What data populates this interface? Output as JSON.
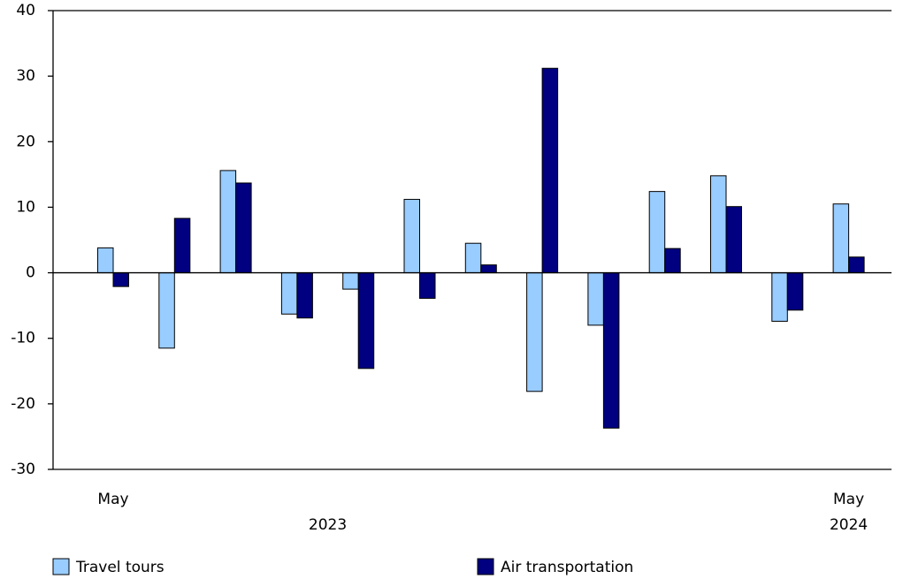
{
  "chart_data": {
    "type": "bar",
    "categories": [
      "May",
      null,
      null,
      null,
      null,
      null,
      null,
      null,
      null,
      null,
      null,
      null,
      "May"
    ],
    "category_groups": [
      {
        "label": "2023",
        "start": 0,
        "end": 7
      },
      {
        "label": "2024",
        "start": 12,
        "end": 12
      }
    ],
    "series": [
      {
        "name": "Travel tours",
        "color": "#99ccff",
        "values": [
          3.8,
          -11.5,
          15.6,
          -6.3,
          -2.5,
          11.2,
          4.5,
          -18.1,
          -8.0,
          12.4,
          14.8,
          -7.4,
          10.5
        ]
      },
      {
        "name": "Air transportation",
        "color": "#000080",
        "values": [
          -2.1,
          8.3,
          13.7,
          -6.9,
          -14.6,
          -3.9,
          1.2,
          31.2,
          -23.7,
          3.7,
          10.1,
          -5.7,
          2.4
        ]
      }
    ],
    "ylim": [
      -30,
      40
    ],
    "yticks": [
      -30,
      -20,
      -10,
      0,
      10,
      20,
      30,
      40
    ]
  }
}
